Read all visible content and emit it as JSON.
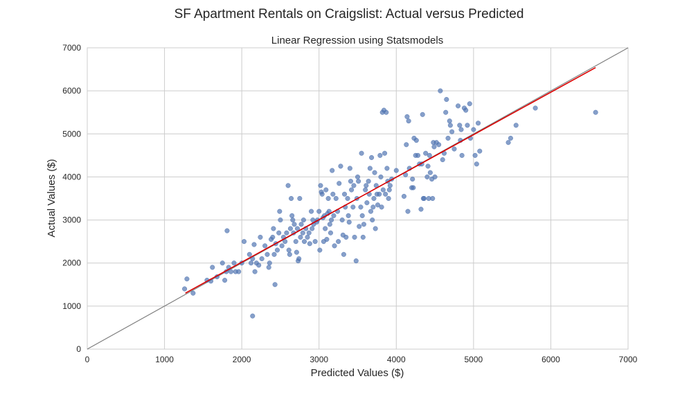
{
  "chart_data": {
    "type": "scatter",
    "suptitle": "SF Apartment Rentals on Craigslist: Actual versus Predicted",
    "title": "Linear Regression using Statsmodels",
    "xlabel": "Predicted Values ($)",
    "ylabel": "Actual Values ($)",
    "xlim": [
      0,
      7000
    ],
    "ylim": [
      0,
      7000
    ],
    "xticks": [
      "0",
      "1000",
      "2000",
      "3000",
      "4000",
      "5000",
      "6000",
      "7000"
    ],
    "yticks": [
      "0",
      "1000",
      "2000",
      "3000",
      "4000",
      "5000",
      "6000",
      "7000"
    ],
    "grid": true,
    "colors": {
      "points": "#4c72b0",
      "fit_line": "#dd0000",
      "diagonal": "#808080"
    },
    "diagonal": {
      "x": [
        0,
        7000
      ],
      "y": [
        0,
        7000
      ]
    },
    "fit_line": {
      "x": [
        1270,
        6580
      ],
      "y": [
        1300,
        6540
      ]
    },
    "points": [
      [
        1290,
        1630
      ],
      [
        1260,
        1400
      ],
      [
        1370,
        1300
      ],
      [
        1550,
        1600
      ],
      [
        1600,
        1580
      ],
      [
        1620,
        1900
      ],
      [
        1680,
        1680
      ],
      [
        1750,
        2000
      ],
      [
        1780,
        1600
      ],
      [
        1800,
        1800
      ],
      [
        1810,
        2750
      ],
      [
        1830,
        1900
      ],
      [
        1860,
        1800
      ],
      [
        1900,
        2000
      ],
      [
        1920,
        1800
      ],
      [
        1960,
        1800
      ],
      [
        2000,
        2000
      ],
      [
        2030,
        2500
      ],
      [
        2100,
        2200
      ],
      [
        2120,
        2000
      ],
      [
        2140,
        2100
      ],
      [
        2140,
        770
      ],
      [
        2160,
        2430
      ],
      [
        2170,
        1800
      ],
      [
        2190,
        2000
      ],
      [
        2220,
        1950
      ],
      [
        2240,
        2600
      ],
      [
        2260,
        2100
      ],
      [
        2300,
        2400
      ],
      [
        2330,
        2200
      ],
      [
        2350,
        1900
      ],
      [
        2360,
        2000
      ],
      [
        2380,
        2550
      ],
      [
        2400,
        2600
      ],
      [
        2410,
        2800
      ],
      [
        2420,
        2200
      ],
      [
        2430,
        1500
      ],
      [
        2440,
        2450
      ],
      [
        2460,
        2300
      ],
      [
        2480,
        2700
      ],
      [
        2490,
        3200
      ],
      [
        2500,
        3000
      ],
      [
        2520,
        2400
      ],
      [
        2540,
        2600
      ],
      [
        2560,
        2500
      ],
      [
        2580,
        2700
      ],
      [
        2600,
        3800
      ],
      [
        2610,
        2300
      ],
      [
        2620,
        2200
      ],
      [
        2630,
        2800
      ],
      [
        2640,
        3500
      ],
      [
        2650,
        3100
      ],
      [
        2660,
        3000
      ],
      [
        2670,
        2700
      ],
      [
        2680,
        2900
      ],
      [
        2700,
        2500
      ],
      [
        2710,
        2250
      ],
      [
        2720,
        2800
      ],
      [
        2730,
        2050
      ],
      [
        2740,
        2100
      ],
      [
        2750,
        3500
      ],
      [
        2760,
        2600
      ],
      [
        2770,
        2900
      ],
      [
        2790,
        2700
      ],
      [
        2800,
        3000
      ],
      [
        2810,
        2500
      ],
      [
        2830,
        2800
      ],
      [
        2850,
        2600
      ],
      [
        2870,
        2700
      ],
      [
        2880,
        2450
      ],
      [
        2900,
        3200
      ],
      [
        2910,
        2800
      ],
      [
        2920,
        3000
      ],
      [
        2930,
        2900
      ],
      [
        2950,
        2500
      ],
      [
        2970,
        2950
      ],
      [
        2980,
        3000
      ],
      [
        3000,
        3200
      ],
      [
        3010,
        2300
      ],
      [
        3020,
        3800
      ],
      [
        3030,
        3650
      ],
      [
        3040,
        3600
      ],
      [
        3050,
        3050
      ],
      [
        3060,
        2500
      ],
      [
        3070,
        3100
      ],
      [
        3080,
        2800
      ],
      [
        3090,
        3700
      ],
      [
        3100,
        2550
      ],
      [
        3110,
        3150
      ],
      [
        3120,
        3500
      ],
      [
        3130,
        3200
      ],
      [
        3140,
        2900
      ],
      [
        3150,
        2700
      ],
      [
        3160,
        3000
      ],
      [
        3170,
        4150
      ],
      [
        3180,
        3600
      ],
      [
        3190,
        3100
      ],
      [
        3200,
        2400
      ],
      [
        3220,
        3500
      ],
      [
        3240,
        3200
      ],
      [
        3250,
        2500
      ],
      [
        3260,
        3850
      ],
      [
        3280,
        4250
      ],
      [
        3300,
        3000
      ],
      [
        3310,
        2650
      ],
      [
        3320,
        2200
      ],
      [
        3330,
        3600
      ],
      [
        3340,
        3300
      ],
      [
        3350,
        2600
      ],
      [
        3370,
        3500
      ],
      [
        3380,
        3100
      ],
      [
        3390,
        2950
      ],
      [
        3400,
        4200
      ],
      [
        3410,
        3900
      ],
      [
        3420,
        3700
      ],
      [
        3440,
        3300
      ],
      [
        3450,
        3800
      ],
      [
        3460,
        2600
      ],
      [
        3480,
        2050
      ],
      [
        3490,
        3500
      ],
      [
        3500,
        4000
      ],
      [
        3510,
        3900
      ],
      [
        3520,
        2850
      ],
      [
        3540,
        3300
      ],
      [
        3550,
        4550
      ],
      [
        3560,
        3100
      ],
      [
        3570,
        2600
      ],
      [
        3580,
        2900
      ],
      [
        3600,
        3700
      ],
      [
        3610,
        3800
      ],
      [
        3620,
        3400
      ],
      [
        3640,
        3900
      ],
      [
        3650,
        3600
      ],
      [
        3660,
        4200
      ],
      [
        3670,
        3200
      ],
      [
        3680,
        4450
      ],
      [
        3690,
        3000
      ],
      [
        3700,
        3300
      ],
      [
        3710,
        3500
      ],
      [
        3720,
        4100
      ],
      [
        3730,
        2800
      ],
      [
        3740,
        3800
      ],
      [
        3750,
        3600
      ],
      [
        3760,
        3350
      ],
      [
        3780,
        3600
      ],
      [
        3790,
        4500
      ],
      [
        3800,
        4000
      ],
      [
        3810,
        3300
      ],
      [
        3820,
        5500
      ],
      [
        3830,
        3700
      ],
      [
        3840,
        5550
      ],
      [
        3850,
        4550
      ],
      [
        3860,
        3600
      ],
      [
        3870,
        5500
      ],
      [
        3880,
        4200
      ],
      [
        3890,
        3900
      ],
      [
        3900,
        3500
      ],
      [
        3910,
        3700
      ],
      [
        3920,
        3800
      ],
      [
        3940,
        3950
      ],
      [
        4000,
        4150
      ],
      [
        4100,
        3550
      ],
      [
        4120,
        4050
      ],
      [
        4130,
        4750
      ],
      [
        4140,
        5400
      ],
      [
        4150,
        3200
      ],
      [
        4160,
        5300
      ],
      [
        4170,
        4200
      ],
      [
        4200,
        3750
      ],
      [
        4210,
        3950
      ],
      [
        4220,
        3750
      ],
      [
        4230,
        4900
      ],
      [
        4250,
        4500
      ],
      [
        4260,
        4850
      ],
      [
        4280,
        4500
      ],
      [
        4300,
        4300
      ],
      [
        4320,
        3250
      ],
      [
        4330,
        4300
      ],
      [
        4340,
        5450
      ],
      [
        4350,
        3500
      ],
      [
        4360,
        3500
      ],
      [
        4380,
        4550
      ],
      [
        4400,
        4000
      ],
      [
        4410,
        4250
      ],
      [
        4420,
        3500
      ],
      [
        4430,
        4500
      ],
      [
        4440,
        4100
      ],
      [
        4460,
        3950
      ],
      [
        4470,
        3500
      ],
      [
        4480,
        4800
      ],
      [
        4490,
        4700
      ],
      [
        4500,
        4000
      ],
      [
        4520,
        4800
      ],
      [
        4550,
        4750
      ],
      [
        4570,
        6000
      ],
      [
        4600,
        4400
      ],
      [
        4620,
        4550
      ],
      [
        4640,
        5500
      ],
      [
        4650,
        5800
      ],
      [
        4670,
        4900
      ],
      [
        4690,
        5300
      ],
      [
        4700,
        5200
      ],
      [
        4720,
        5050
      ],
      [
        4750,
        4650
      ],
      [
        4800,
        5650
      ],
      [
        4820,
        5200
      ],
      [
        4830,
        4850
      ],
      [
        4840,
        5100
      ],
      [
        4850,
        4500
      ],
      [
        4880,
        5600
      ],
      [
        4900,
        5550
      ],
      [
        4920,
        5200
      ],
      [
        4950,
        5700
      ],
      [
        4960,
        4900
      ],
      [
        5000,
        5100
      ],
      [
        5020,
        4500
      ],
      [
        5040,
        4300
      ],
      [
        5060,
        5250
      ],
      [
        5080,
        4600
      ],
      [
        5450,
        4800
      ],
      [
        5480,
        4900
      ],
      [
        5550,
        5200
      ],
      [
        5800,
        5600
      ],
      [
        6580,
        5500
      ]
    ]
  }
}
